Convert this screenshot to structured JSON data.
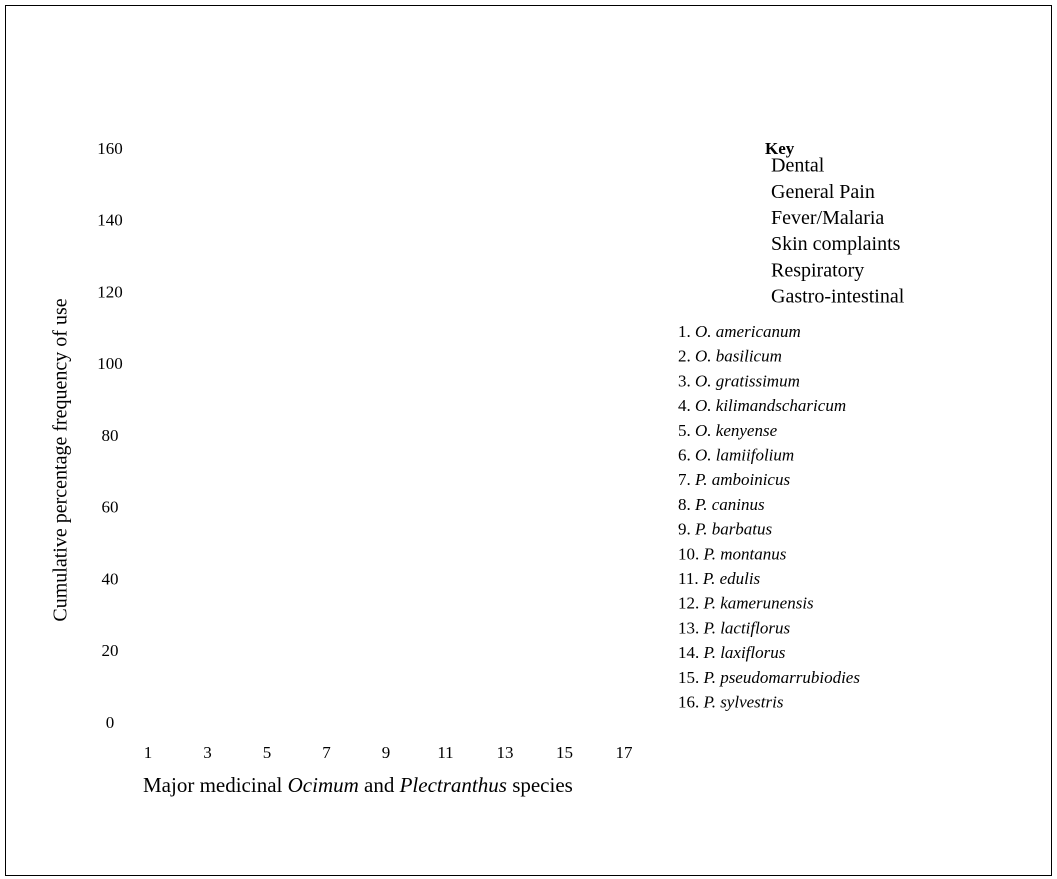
{
  "chart_data": {
    "type": "bar",
    "ylabel": "Cumulative percentage frequency of use",
    "xlabel": [
      "Major medicinal ",
      "Ocimum",
      " and ",
      "Plectranthus",
      " species"
    ],
    "ylim": [
      0,
      160
    ],
    "yticks": [
      0,
      20,
      40,
      60,
      80,
      100,
      120,
      140,
      160
    ],
    "xlim": [
      1,
      17
    ],
    "xticks": [
      1,
      3,
      5,
      7,
      9,
      11,
      13,
      15,
      17
    ],
    "legend": {
      "title": "Key",
      "entries": [
        "Dental",
        "General Pain",
        "Fever/Malaria",
        "Skin complaints",
        "Respiratory",
        "Gastro-intestinal"
      ]
    },
    "species": [
      {
        "number": "1.",
        "name": "O. americanum"
      },
      {
        "number": "2.",
        "name": "O. basilicum"
      },
      {
        "number": "3.",
        "name": "O. gratissimum"
      },
      {
        "number": "4.",
        "name": "O. kilimandscharicum"
      },
      {
        "number": "5.",
        "name": "O. kenyense"
      },
      {
        "number": "6.",
        "name": "O. lamiifolium"
      },
      {
        "number": "7.",
        "name": "P. amboinicus"
      },
      {
        "number": "8.",
        "name": "P. caninus"
      },
      {
        "number": "9.",
        "name": "P. barbatus"
      },
      {
        "number": "10.",
        "name": "P. montanus"
      },
      {
        "number": "11.",
        "name": "P. edulis"
      },
      {
        "number": "12.",
        "name": "P. kamerunensis"
      },
      {
        "number": "13.",
        "name": "P. lactiflorus"
      },
      {
        "number": "14.",
        "name": "P. laxiflorus"
      },
      {
        "number": "15.",
        "name": "P. pseudomarrubiodies"
      },
      {
        "number": "16.",
        "name": "P. sylvestris"
      }
    ]
  }
}
